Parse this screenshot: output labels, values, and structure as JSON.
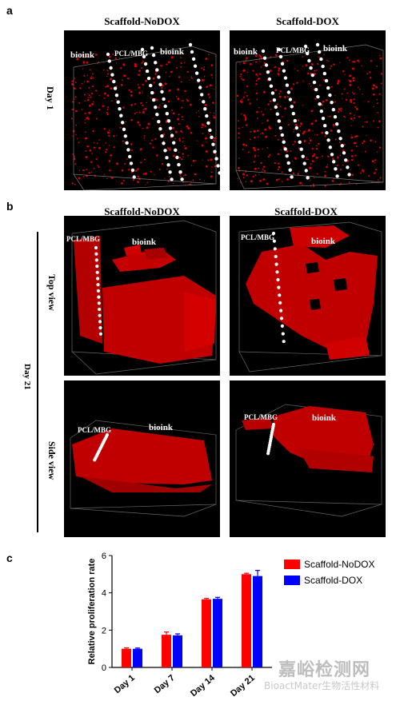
{
  "panel_a": {
    "letter": "a",
    "col1_title": "Scaffold-NoDOX",
    "col2_title": "Scaffold-DOX",
    "row_label": "Day 1",
    "img1_labels": {
      "left": "bioink",
      "center": "PCL/MBG",
      "right": "bioink"
    },
    "img2_labels": {
      "left": "bioink",
      "center": "PCL/MBG",
      "right": "bioink"
    }
  },
  "panel_b": {
    "letter": "b",
    "col1_title": "Scaffold-NoDOX",
    "col2_title": "Scaffold-DOX",
    "day_label": "Day 21",
    "row1_label": "Top view",
    "row2_label": "Side view",
    "img_labels": {
      "pcl": "PCL/MBG",
      "bioink": "bioink"
    }
  },
  "panel_c": {
    "letter": "c",
    "watermark_cn": "嘉峪检测网",
    "watermark_en": "BioactMater生物活性材料"
  },
  "colors": {
    "nodox": "#ff0000",
    "dox": "#0000ff",
    "tissue": "#c40000"
  },
  "chart_data": {
    "type": "bar",
    "categories": [
      "Day 1",
      "Day 7",
      "Day 14",
      "Day 21"
    ],
    "series": [
      {
        "name": "Scaffold-NoDOX",
        "values": [
          1.0,
          1.75,
          3.65,
          5.0
        ],
        "errors": [
          0.05,
          0.15,
          0.05,
          0.05
        ]
      },
      {
        "name": "Scaffold-DOX",
        "values": [
          1.0,
          1.72,
          3.68,
          4.9
        ],
        "errors": [
          0.04,
          0.08,
          0.08,
          0.3
        ]
      }
    ],
    "xlabel": "",
    "ylabel": "Relative proliferation rate",
    "ylim": [
      0,
      6
    ],
    "yticks": [
      0,
      2,
      4,
      6
    ],
    "legend": "top-right",
    "grid": false
  }
}
